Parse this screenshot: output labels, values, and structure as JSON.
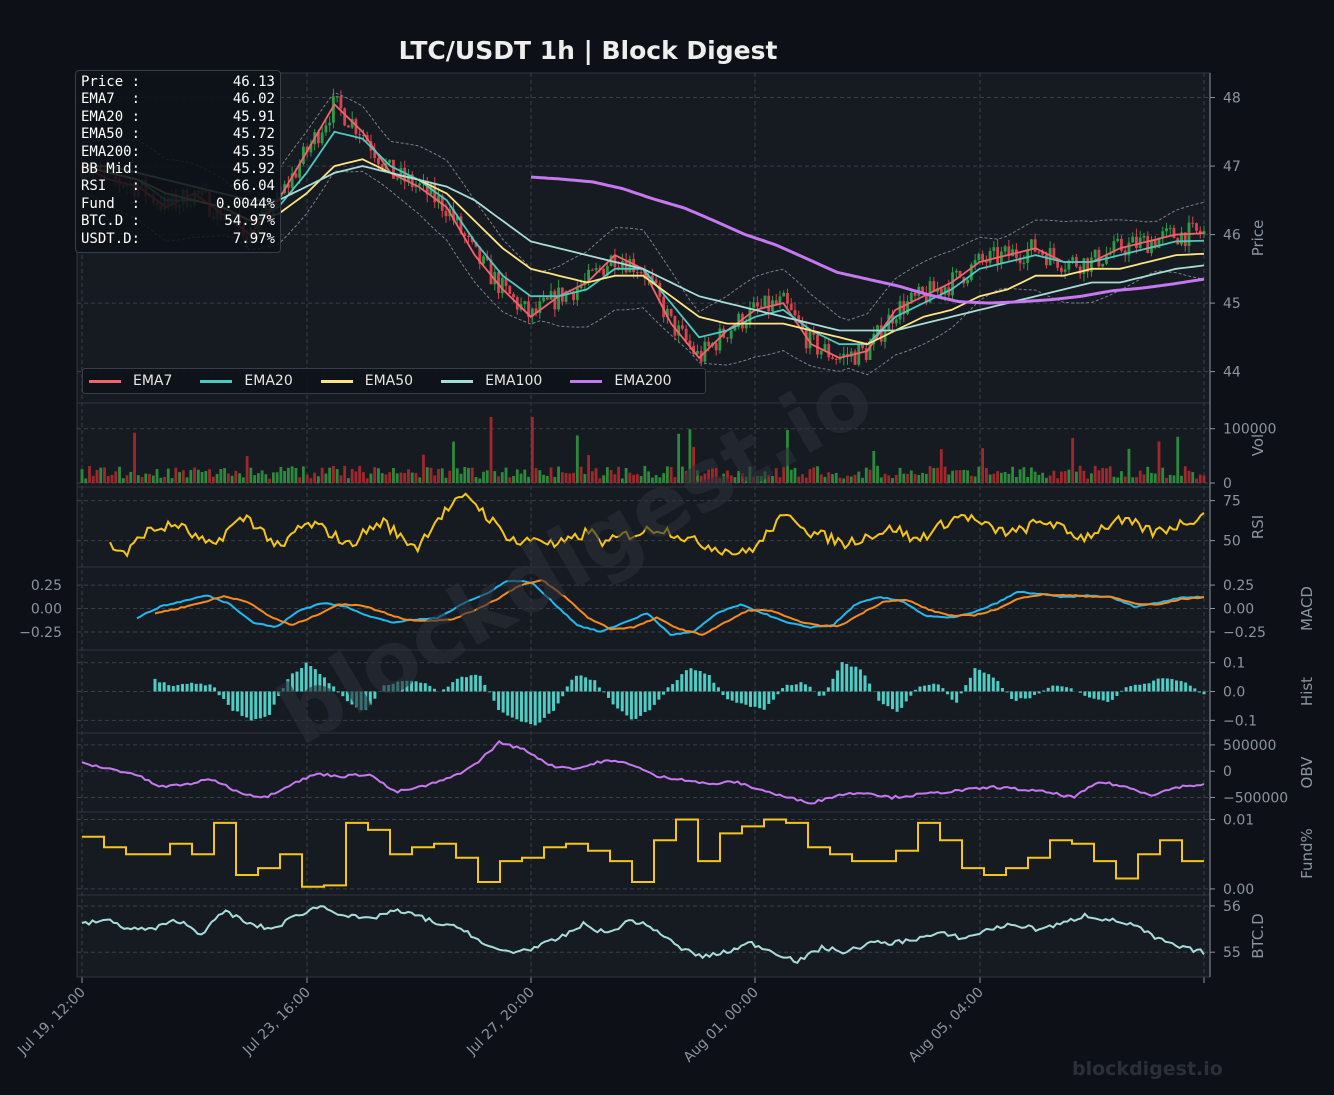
{
  "chart_title": "LTC/USDT  1h  |  Block Digest",
  "watermark": {
    "diagonal": "blockdigest.io",
    "corner": "blockdigest.io"
  },
  "info_box": [
    {
      "label": "Price :",
      "value": "46.13"
    },
    {
      "label": "EMA7  :",
      "value": "46.02"
    },
    {
      "label": "EMA20 :",
      "value": "45.91"
    },
    {
      "label": "EMA50 :",
      "value": "45.72"
    },
    {
      "label": "EMA200:",
      "value": "45.35"
    },
    {
      "label": "BB Mid:",
      "value": "45.92"
    },
    {
      "label": "RSI   :",
      "value": "66.04"
    },
    {
      "label": "Fund  :",
      "value": "0.0044%"
    },
    {
      "label": "BTC.D :",
      "value": "54.97%"
    },
    {
      "label": "USDT.D:",
      "value": "7.97%"
    }
  ],
  "legend": [
    {
      "name": "EMA7",
      "color": "#f0646e"
    },
    {
      "name": "EMA20",
      "color": "#4ec9c0"
    },
    {
      "name": "EMA50",
      "color": "#ffe484"
    },
    {
      "name": "EMA100",
      "color": "#a8dcd8"
    },
    {
      "name": "EMA200",
      "color": "#c678f0"
    }
  ],
  "chart_data": {
    "type": "line",
    "x_ticks": [
      "Jul 19, 12:00",
      "Jul 23, 16:00",
      "Jul 27, 20:00",
      "Aug 01, 00:00",
      "Aug 05, 04:00"
    ],
    "x_hours_total": 500,
    "panels": [
      {
        "id": "price",
        "ylabel": "Price",
        "ylim": [
          43.6,
          48.3
        ],
        "ticks": [
          44,
          45,
          46,
          47,
          48
        ],
        "tick_labels": [
          "44",
          "45",
          "46",
          "47",
          "48"
        ],
        "grid": true,
        "series": [
          {
            "name": "EMA7",
            "color": "#f0646e",
            "values": [
              47.0,
              46.8,
              46.7,
              46.4,
              46.6,
              46.3,
              46.0,
              46.5,
              47.2,
              47.9,
              47.5,
              46.9,
              46.7,
              46.4,
              45.7,
              45.2,
              44.8,
              45.1,
              45.3,
              45.7,
              45.5,
              44.7,
              44.2,
              44.6,
              44.9,
              45.0,
              44.4,
              44.2,
              44.3,
              44.9,
              45.1,
              45.3,
              45.6,
              45.7,
              45.8,
              45.6,
              45.6,
              45.8,
              45.9,
              46.0,
              46.02
            ]
          },
          {
            "name": "EMA20",
            "color": "#4ec9c0",
            "values": [
              47.0,
              46.9,
              46.8,
              46.5,
              46.5,
              46.4,
              46.2,
              46.4,
              46.9,
              47.5,
              47.4,
              47.0,
              46.8,
              46.5,
              45.9,
              45.4,
              45.1,
              45.1,
              45.2,
              45.5,
              45.5,
              45.0,
              44.5,
              44.6,
              44.8,
              44.9,
              44.6,
              44.4,
              44.4,
              44.8,
              45.0,
              45.2,
              45.5,
              45.6,
              45.7,
              45.6,
              45.6,
              45.7,
              45.8,
              45.9,
              45.91
            ]
          },
          {
            "name": "EMA50",
            "color": "#ffe484",
            "values": [
              47.0,
              46.9,
              46.8,
              46.6,
              46.5,
              46.4,
              46.2,
              46.3,
              46.6,
              47.0,
              47.1,
              46.9,
              46.8,
              46.6,
              46.2,
              45.8,
              45.5,
              45.4,
              45.3,
              45.4,
              45.4,
              45.1,
              44.8,
              44.7,
              44.7,
              44.7,
              44.6,
              44.5,
              44.4,
              44.6,
              44.8,
              44.9,
              45.1,
              45.2,
              45.4,
              45.4,
              45.5,
              45.5,
              45.6,
              45.7,
              45.72
            ]
          },
          {
            "name": "EMA100",
            "color": "#a8dcd8",
            "values": [
              47.0,
              47.0,
              46.9,
              46.8,
              46.7,
              46.6,
              46.5,
              46.5,
              46.7,
              46.9,
              47.0,
              46.9,
              46.8,
              46.7,
              46.5,
              46.2,
              45.9,
              45.8,
              45.7,
              45.6,
              45.5,
              45.3,
              45.1,
              45.0,
              44.9,
              44.8,
              44.7,
              44.6,
              44.6,
              44.6,
              44.7,
              44.8,
              44.9,
              45.0,
              45.1,
              45.2,
              45.3,
              45.3,
              45.4,
              45.5,
              45.55
            ]
          },
          {
            "name": "EMA200",
            "color": "#c678f0",
            "values": [
              46.84,
              46.81,
              46.77,
              46.67,
              46.52,
              46.39,
              46.2,
              46.0,
              45.85,
              45.65,
              45.45,
              45.35,
              45.25,
              45.12,
              45.02,
              45.0,
              45.02,
              45.05,
              45.1,
              45.18,
              45.22,
              45.28,
              45.35
            ]
          }
        ],
        "bollinger_color": "#7a7f88"
      },
      {
        "id": "vol",
        "ylabel": "Vol",
        "ylim": [
          0,
          140000
        ],
        "ticks": [
          0,
          100000
        ],
        "tick_labels": [
          "0",
          "100000"
        ],
        "grid": true,
        "bar_colors": {
          "up": "#2d8a3c",
          "down": "#a0282d"
        },
        "typical_value": 20000,
        "peak_value": 135000
      },
      {
        "id": "rsi",
        "ylabel": "RSI",
        "ylim": [
          36,
          81
        ],
        "ticks": [
          50,
          75
        ],
        "tick_labels": [
          "50",
          "75"
        ],
        "grid": true,
        "color": "#f5c518",
        "values": [
          47,
          42,
          55,
          58,
          60,
          52,
          46,
          58,
          65,
          55,
          44,
          58,
          60,
          54,
          47,
          56,
          62,
          52,
          46,
          62,
          72,
          78,
          66,
          55,
          48,
          52,
          47,
          50,
          56,
          48,
          53,
          55,
          58,
          55,
          50,
          47,
          44,
          42,
          48,
          62,
          65,
          55,
          52,
          48,
          52,
          55,
          58,
          50,
          55,
          62,
          66,
          60,
          56,
          55,
          60,
          62,
          55,
          52,
          58,
          62,
          60,
          55,
          58,
          62,
          66
        ]
      },
      {
        "id": "macd",
        "ylabel": "MACD",
        "ylim": [
          -0.4,
          0.4
        ],
        "ticks": [
          -0.25,
          0.0,
          0.25
        ],
        "tick_labels": [
          "−0.25",
          "0.00",
          "0.25"
        ],
        "grid": true,
        "series": [
          {
            "name": "MACD",
            "color": "#22b8f0",
            "values": [
              -0.1,
              0.02,
              0.08,
              0.14,
              0.05,
              -0.15,
              -0.2,
              -0.02,
              0.06,
              0.02,
              -0.08,
              -0.15,
              -0.12,
              -0.1,
              0.05,
              0.15,
              0.3,
              0.28,
              0.05,
              -0.18,
              -0.25,
              -0.15,
              -0.05,
              -0.28,
              -0.25,
              -0.05,
              0.04,
              -0.05,
              -0.15,
              -0.2,
              -0.18,
              0.05,
              0.12,
              0.08,
              -0.08,
              -0.1,
              -0.05,
              0.05,
              0.18,
              0.15,
              0.12,
              0.14,
              0.12,
              0.02,
              0.06,
              0.12,
              0.12
            ]
          },
          {
            "name": "Signal",
            "color": "#f58a1f",
            "values": [
              -0.05,
              0.0,
              0.06,
              0.13,
              0.08,
              -0.08,
              -0.18,
              -0.08,
              0.04,
              0.04,
              -0.04,
              -0.12,
              -0.13,
              -0.12,
              -0.02,
              0.1,
              0.25,
              0.3,
              0.12,
              -0.1,
              -0.22,
              -0.2,
              -0.1,
              -0.22,
              -0.28,
              -0.15,
              -0.02,
              -0.02,
              -0.12,
              -0.18,
              -0.19,
              -0.05,
              0.08,
              0.09,
              -0.02,
              -0.08,
              -0.07,
              0.0,
              0.12,
              0.15,
              0.14,
              0.13,
              0.12,
              0.05,
              0.04,
              0.1,
              0.12
            ]
          }
        ]
      },
      {
        "id": "hist",
        "ylabel": "Hist",
        "ylim": [
          -0.13,
          0.13
        ],
        "ticks": [
          -0.1,
          0.0,
          0.1
        ],
        "tick_labels": [
          "−0.1",
          "0.0",
          "0.1"
        ],
        "grid": true,
        "color": "#4ecdc4",
        "values": [
          0.04,
          0.02,
          0.03,
          0.02,
          -0.06,
          -0.1,
          -0.08,
          0.05,
          0.1,
          0.04,
          -0.03,
          -0.07,
          0.02,
          0.04,
          0.03,
          0.0,
          0.05,
          0.06,
          -0.06,
          -0.1,
          -0.12,
          -0.06,
          0.06,
          0.04,
          -0.04,
          -0.1,
          -0.06,
          0.02,
          0.08,
          0.06,
          -0.03,
          -0.05,
          -0.06,
          0.02,
          0.03,
          -0.02,
          0.1,
          0.08,
          -0.04,
          -0.07,
          0.02,
          0.03,
          -0.04,
          0.08,
          0.05,
          -0.03,
          -0.02,
          0.02,
          0.01,
          -0.02,
          -0.04,
          0.02,
          0.03,
          0.05,
          0.03,
          -0.01
        ]
      },
      {
        "id": "obv",
        "ylabel": "OBV",
        "ylim": [
          -700000,
          650000
        ],
        "ticks": [
          -500000,
          0,
          500000
        ],
        "tick_labels": [
          "−500000",
          "0",
          "500000"
        ],
        "grid": true,
        "color": "#c678f0",
        "values": [
          150000,
          50000,
          -50000,
          -300000,
          -250000,
          -150000,
          -400000,
          -500000,
          -250000,
          -50000,
          -100000,
          -50000,
          -400000,
          -300000,
          -150000,
          100000,
          550000,
          400000,
          100000,
          50000,
          200000,
          150000,
          -100000,
          -150000,
          -250000,
          -200000,
          -350000,
          -500000,
          -600000,
          -450000,
          -400000,
          -500000,
          -450000,
          -400000,
          -350000,
          -300000,
          -350000,
          -400000,
          -500000,
          -200000,
          -300000,
          -450000,
          -300000,
          -250000
        ]
      },
      {
        "id": "fund",
        "ylabel": "Fund%",
        "ylim": [
          -0.0003,
          0.0105
        ],
        "ticks": [
          0.0,
          0.01
        ],
        "tick_labels": [
          "0.00",
          "0.01"
        ],
        "grid": true,
        "color": "#f5c518",
        "values": [
          0.0075,
          0.006,
          0.005,
          0.005,
          0.0065,
          0.005,
          0.0095,
          0.002,
          0.003,
          0.005,
          0.0003,
          0.0005,
          0.0095,
          0.0085,
          0.005,
          0.006,
          0.0065,
          0.0045,
          0.001,
          0.004,
          0.0045,
          0.006,
          0.0065,
          0.0055,
          0.004,
          0.001,
          0.007,
          0.01,
          0.004,
          0.008,
          0.009,
          0.01,
          0.0095,
          0.006,
          0.005,
          0.004,
          0.004,
          0.0055,
          0.0095,
          0.007,
          0.003,
          0.002,
          0.003,
          0.0045,
          0.007,
          0.0065,
          0.004,
          0.0015,
          0.005,
          0.007,
          0.004
        ]
      },
      {
        "id": "btcd",
        "ylabel": "BTC.D",
        "ylim": [
          54.55,
          56.15
        ],
        "ticks": [
          55,
          56
        ],
        "tick_labels": [
          "55",
          "56"
        ],
        "grid": true,
        "color": "#a8dcd8",
        "values": [
          55.6,
          55.7,
          55.5,
          55.5,
          55.7,
          55.4,
          55.9,
          55.6,
          55.5,
          55.8,
          56.0,
          55.8,
          55.7,
          55.9,
          55.8,
          55.6,
          55.5,
          55.1,
          55.0,
          55.1,
          55.3,
          55.6,
          55.4,
          55.7,
          55.5,
          55.1,
          54.9,
          55.0,
          55.2,
          55.0,
          54.8,
          55.1,
          55.0,
          55.2,
          55.2,
          55.3,
          55.4,
          55.3,
          55.5,
          55.6,
          55.5,
          55.6,
          55.8,
          55.7,
          55.6,
          55.3,
          55.1,
          55.0
        ]
      }
    ]
  }
}
